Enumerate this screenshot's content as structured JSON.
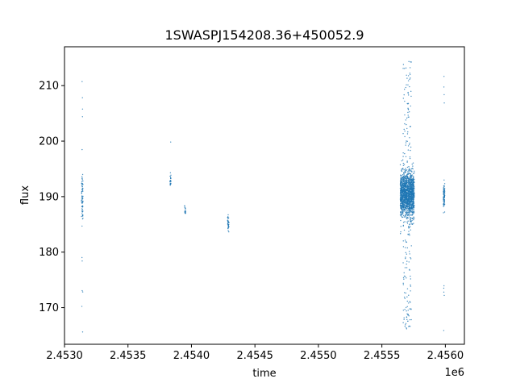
{
  "chart_data": {
    "type": "scatter",
    "title": "1SWASPJ154208.36+450052.9",
    "xlabel": "time",
    "ylabel": "flux",
    "x_offset_label": "1e6",
    "xlim": [
      2453000,
      2456150
    ],
    "ylim": [
      163.4,
      217.0
    ],
    "x_ticks": [
      2453000,
      2453500,
      2454000,
      2454500,
      2455000,
      2455500,
      2456000
    ],
    "x_tick_labels": [
      "2.4530",
      "2.4535",
      "2.4540",
      "2.4545",
      "2.4550",
      "2.4555",
      "2.4560"
    ],
    "y_ticks": [
      170,
      180,
      190,
      200,
      210
    ],
    "y_tick_labels": [
      "170",
      "180",
      "190",
      "200",
      "210"
    ],
    "grid": false,
    "legend": "none",
    "marker_color": "#1f77b4",
    "clusters": [
      {
        "x_center": 2453140,
        "x_width": 12,
        "y_mean": 190.0,
        "y_sd": 2.2,
        "n": 70,
        "outliers": [
          165.8,
          170.3,
          172.7,
          173.2,
          178.5,
          178.7,
          198.1,
          204.0,
          205.8,
          207.5,
          210.5
        ]
      },
      {
        "x_center": 2453835,
        "x_width": 8,
        "y_mean": 192.8,
        "y_sd": 0.6,
        "n": 20,
        "outliers": [
          199.6
        ]
      },
      {
        "x_center": 2453950,
        "x_width": 8,
        "y_mean": 187.5,
        "y_sd": 0.4,
        "n": 15,
        "outliers": []
      },
      {
        "x_center": 2454290,
        "x_width": 10,
        "y_mean": 185.2,
        "y_sd": 0.7,
        "n": 35,
        "outliers": []
      },
      {
        "x_center": 2455700,
        "x_width": 110,
        "y_mean": 190.3,
        "y_sd": 2.0,
        "n": 1500,
        "outliers": [
          166.5,
          167.0,
          167.5,
          168.0,
          168.5,
          169.0,
          169.5,
          170.0,
          171.0,
          172.0,
          173.0,
          174.0,
          175.0,
          176.0,
          177.0,
          178.0,
          179.0,
          180.0,
          181.0,
          182.0,
          183.0,
          184.0,
          185.0,
          196.0,
          197.0,
          198.0,
          199.0,
          200.0,
          201.0,
          202.0,
          203.0,
          204.0,
          205.0,
          206.0,
          207.0,
          208.0,
          209.0,
          210.0,
          211.0,
          212.0,
          213.0,
          214.0
        ]
      },
      {
        "x_center": 2455990,
        "x_width": 10,
        "y_mean": 190.0,
        "y_sd": 1.2,
        "n": 80,
        "outliers": [
          166.2,
          172.5,
          173.0,
          173.5,
          174.0,
          206.5,
          208.0,
          210.0,
          211.5
        ]
      }
    ]
  }
}
